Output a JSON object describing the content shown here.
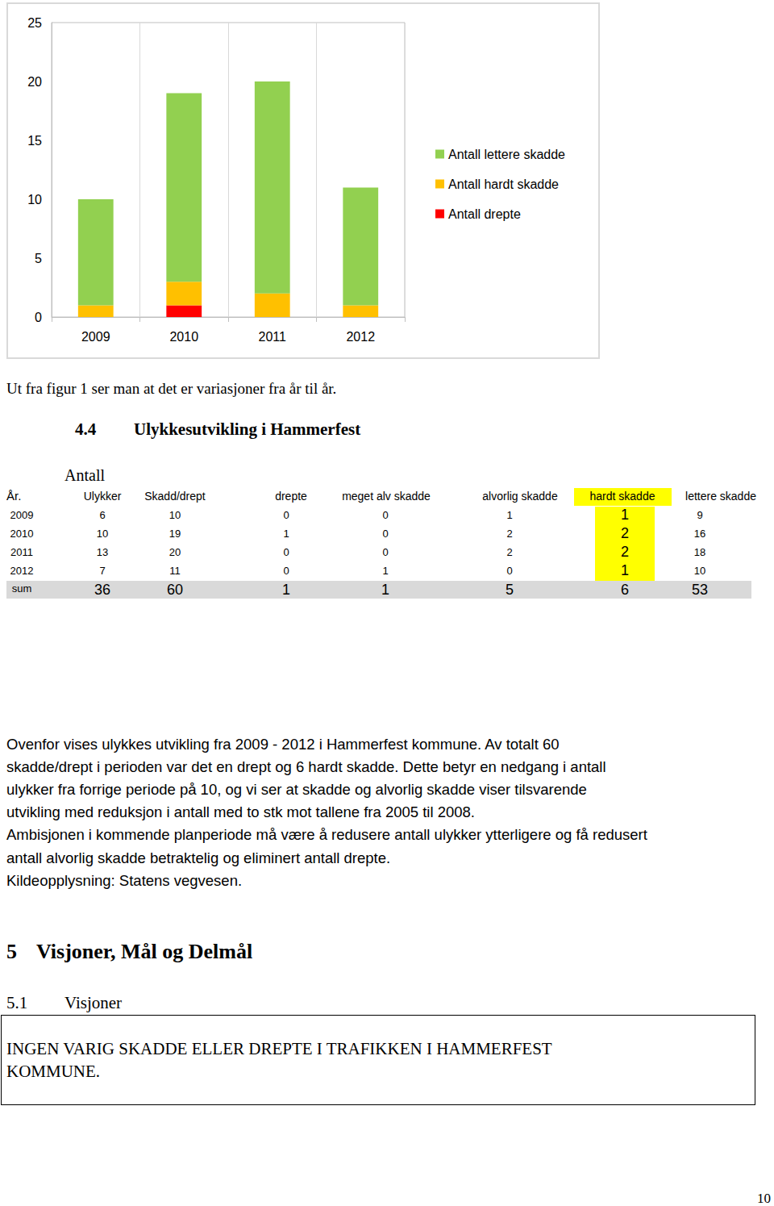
{
  "chart_data": {
    "type": "bar",
    "categories": [
      "2009",
      "2010",
      "2011",
      "2012"
    ],
    "series": [
      {
        "name": "Antall drepte",
        "color": "#ff0000",
        "values": [
          0,
          1,
          0,
          0
        ]
      },
      {
        "name": "Antall hardt skadde",
        "color": "#ffc000",
        "values": [
          1,
          2,
          2,
          1
        ]
      },
      {
        "name": "Antall lettere skadde",
        "color": "#92d050",
        "values": [
          9,
          16,
          18,
          10
        ]
      }
    ],
    "ylim": [
      0,
      25
    ],
    "yticks": [
      0,
      5,
      10,
      15,
      20,
      25
    ],
    "stacked": true,
    "grid": false,
    "legend": "right"
  },
  "caption": "Ut fra figur 1 ser man at det er variasjoner fra år til år.",
  "section": {
    "number": "4.4",
    "title": "Ulykkesutvikling i Hammerfest"
  },
  "table": {
    "caption": "Antall",
    "header": [
      "År.",
      "Ulykker",
      "Skadd/drept",
      "drepte",
      "meget alv skadde",
      "alvorlig skadde",
      "hardt skadde",
      "lettere skadde"
    ],
    "rows": [
      [
        2009,
        6,
        10,
        0,
        0,
        1,
        1,
        9
      ],
      [
        2010,
        10,
        19,
        1,
        0,
        2,
        2,
        16
      ],
      [
        2011,
        13,
        20,
        0,
        0,
        2,
        2,
        18
      ],
      [
        2012,
        7,
        11,
        0,
        1,
        0,
        1,
        10
      ],
      [
        "sum",
        36,
        60,
        1,
        1,
        5,
        6,
        53
      ]
    ]
  },
  "paragraph": [
    "Ovenfor vises ulykkes utvikling fra 2009 - 2012 i Hammerfest kommune. Av totalt 60",
    "skadde/drept i perioden var det en drept og 6 hardt skadde. Dette betyr en nedgang i antall",
    "ulykker fra forrige periode på 10, og vi ser at skadde og alvorlig skadde viser tilsvarende",
    "utvikling med reduksjon i antall med to stk mot tallene fra 2005 til 2008.",
    "Ambisjonen i kommende planperiode må være å redusere antall ulykker ytterligere og få redusert",
    "antall alvorlig skadde betraktelig og eliminert antall drepte.",
    "Kildeopplysning: Statens vegvesen."
  ],
  "heading": {
    "number": "5",
    "title": "Visjoner, Mål og Delmål"
  },
  "subheading": {
    "number": "5.1",
    "title": "Visjoner"
  },
  "vision": [
    "INGEN VARIG SKADDE ELLER DREPTE I TRAFIKKEN I HAMMERFEST",
    "KOMMUNE."
  ],
  "page_number": "10"
}
